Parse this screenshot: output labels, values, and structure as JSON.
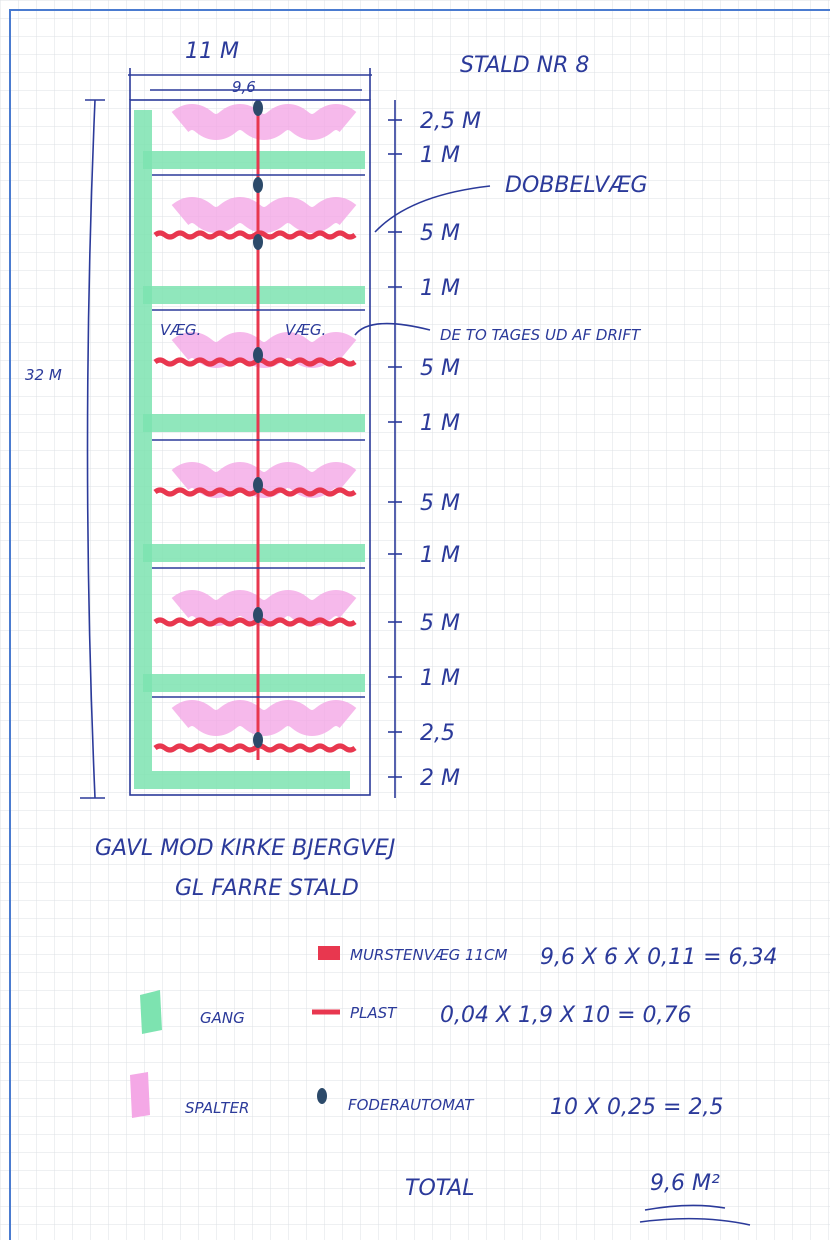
{
  "header": {
    "title": "STALD NR 8",
    "width": "11 M",
    "inner_width": "9,6",
    "length": "32 M"
  },
  "dimensions": [
    "2,5 M",
    "1 M",
    "5 M",
    "1 M",
    "5 M",
    "1 M",
    "5 M",
    "1 M",
    "5 M",
    "1 M",
    "2,5",
    "2 M"
  ],
  "notes": {
    "double_wall": "DOBBELVÆG",
    "wall_labels": [
      "VÆG.",
      "VÆG."
    ],
    "out_of_use": "DE TO TAGES UD AF DRIFT"
  },
  "footer": [
    "GAVL MOD KIRKE BJERGVEJ",
    "GL FARRE STALD"
  ],
  "legend": [
    {
      "label": "MURSTENVÆG 11CM",
      "calc": "9,6 X 6 X 0,11 = 6,34"
    },
    {
      "label": "GANG"
    },
    {
      "label": "PLAST",
      "calc": "0,04 X 1,9 X 10 = 0,76"
    },
    {
      "label": "SPALTER"
    },
    {
      "label": "FODERAUTOMAT",
      "calc": "10 X 0,25 = 2,5"
    }
  ],
  "total": {
    "label": "TOTAL",
    "value": "9,6 M²"
  }
}
